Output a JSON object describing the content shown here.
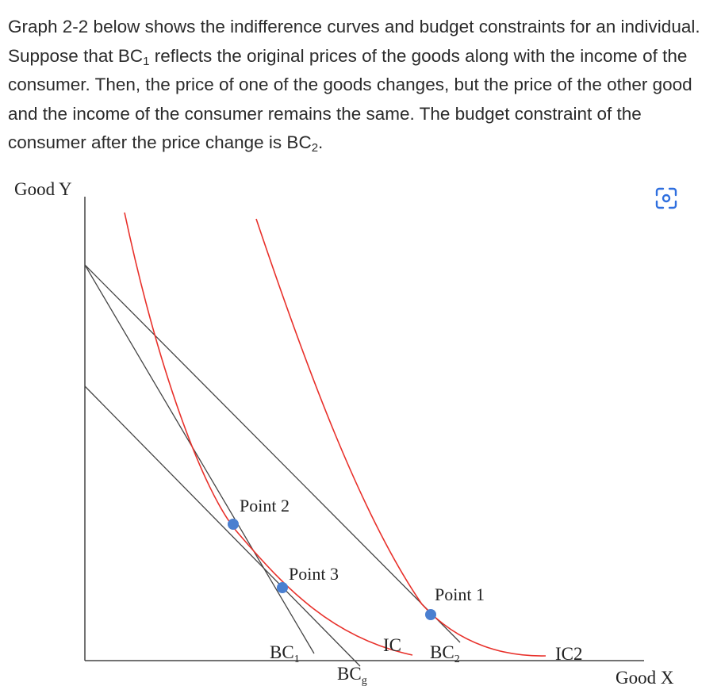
{
  "question": {
    "part1": "Graph 2-2 below shows the indifference curves and budget constraints for an individual. Suppose that BC",
    "sub1": "1",
    "part2": " reflects the original prices of the goods along with the income of the consumer. Then, the price of one of the goods changes, but the price of the other good and the income of the consumer remains the same. The budget constraint of the consumer after the price change is BC",
    "sub2": "2",
    "part3": "."
  },
  "graph": {
    "y_axis_label": "Good Y",
    "x_axis_label": "Good X",
    "point_labels": [
      "Point 2",
      "Point 3",
      "Point 1"
    ],
    "bc1": {
      "base": "BC",
      "sub": "1"
    },
    "bc2": {
      "base": "BC",
      "sub": "2"
    },
    "bcg": {
      "base": "BC",
      "sub": "g"
    },
    "ic_label": "IC",
    "ic2_label": "IC2",
    "curve_color": "#e8302a",
    "line_color": "#444444",
    "point_color": "#4a7fd0"
  },
  "toolbar": {
    "scan_icon": "scan-text-icon"
  }
}
